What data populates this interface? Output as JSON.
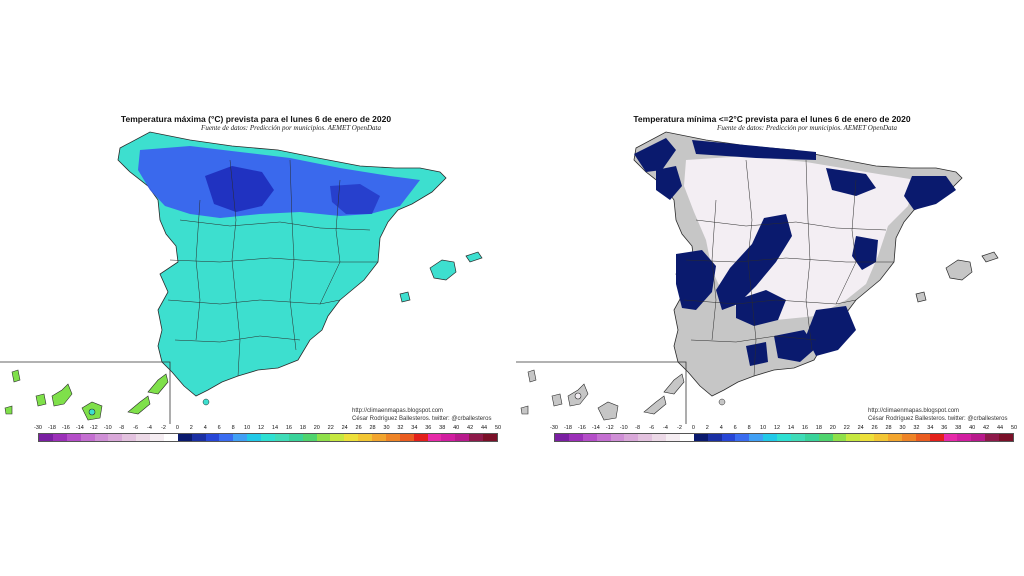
{
  "left_panel": {
    "title": "Temperatura máxima (°C) prevista para el lunes 6 de enero de 2020",
    "source": "Fuente de datos: Predicción por municipios. AEMET OpenData",
    "credit_url": "http://climaenmapas.blogspot.com",
    "credit_author": "César Rodríguez Ballesteros. twitter: @crballesteros"
  },
  "right_panel": {
    "title": "Temperatura mínima <=2°C prevista para el lunes 6 de enero de 2020",
    "source": "Fuente de datos: Predicción por municipios. AEMET OpenData",
    "credit_url": "http://climaenmapas.blogspot.com",
    "credit_author": "César Rodríguez Ballesteros. twitter: @crballesteros"
  },
  "legend": {
    "ticks": [
      "-30",
      "-18",
      "-16",
      "-14",
      "-12",
      "-10",
      "-8",
      "-6",
      "-4",
      "-2",
      "0",
      "2",
      "4",
      "6",
      "8",
      "10",
      "12",
      "14",
      "16",
      "18",
      "20",
      "22",
      "24",
      "26",
      "28",
      "30",
      "32",
      "34",
      "36",
      "38",
      "40",
      "42",
      "44",
      "50"
    ],
    "colors": [
      "#7a1fa2",
      "#9b30b8",
      "#b44ec8",
      "#c46fd1",
      "#cf8fd6",
      "#d9a8d9",
      "#e3c2df",
      "#ecd9e7",
      "#f5edf2",
      "#ffffff",
      "#0a1a6e",
      "#1a2fa3",
      "#2746d6",
      "#3a6cf0",
      "#41a0f5",
      "#22c9e8",
      "#2ee0d2",
      "#3fdcb8",
      "#39d39a",
      "#4fd46e",
      "#8fe04a",
      "#c6e840",
      "#ede03a",
      "#f2c634",
      "#f2a52e",
      "#ee8427",
      "#ea5c20",
      "#e3201b",
      "#e62aa8",
      "#d11ea0",
      "#b81a8c",
      "#8e1a4a",
      "#7a1028"
    ],
    "map_colors": {
      "max_land": "#3ddfcf",
      "max_cold": "#3a5cf0",
      "max_coldest": "#1f2fbf",
      "max_canarias": "#7fe04a",
      "min_land": "#c6c6c6",
      "min_frost": "#0a1a6e",
      "min_mild": "#f3eef3",
      "border": "#2b2b2b"
    }
  }
}
